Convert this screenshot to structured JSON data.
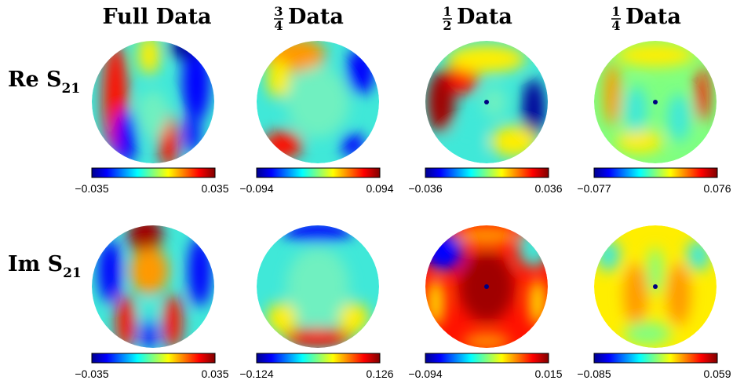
{
  "columns": [
    {
      "title": "Full Data"
    },
    {
      "numerator": "3",
      "denominator": "4",
      "title": "Data"
    },
    {
      "numerator": "1",
      "denominator": "2",
      "title": "Data"
    },
    {
      "numerator": "1",
      "denominator": "4",
      "title": "Data"
    }
  ],
  "rows": [
    {
      "label": "Re S",
      "subscript": "21",
      "panels": [
        {
          "min": "−0.035",
          "max": "0.035"
        },
        {
          "min": "−0.094",
          "max": "0.094"
        },
        {
          "min": "−0.036",
          "max": "0.036"
        },
        {
          "min": "−0.077",
          "max": "0.076"
        }
      ]
    },
    {
      "label": "Im S",
      "subscript": "21",
      "panels": [
        {
          "min": "−0.035",
          "max": "0.035"
        },
        {
          "min": "−0.124",
          "max": "0.126"
        },
        {
          "min": "−0.094",
          "max": "0.015"
        },
        {
          "min": "−0.085",
          "max": "0.059"
        }
      ]
    }
  ]
}
